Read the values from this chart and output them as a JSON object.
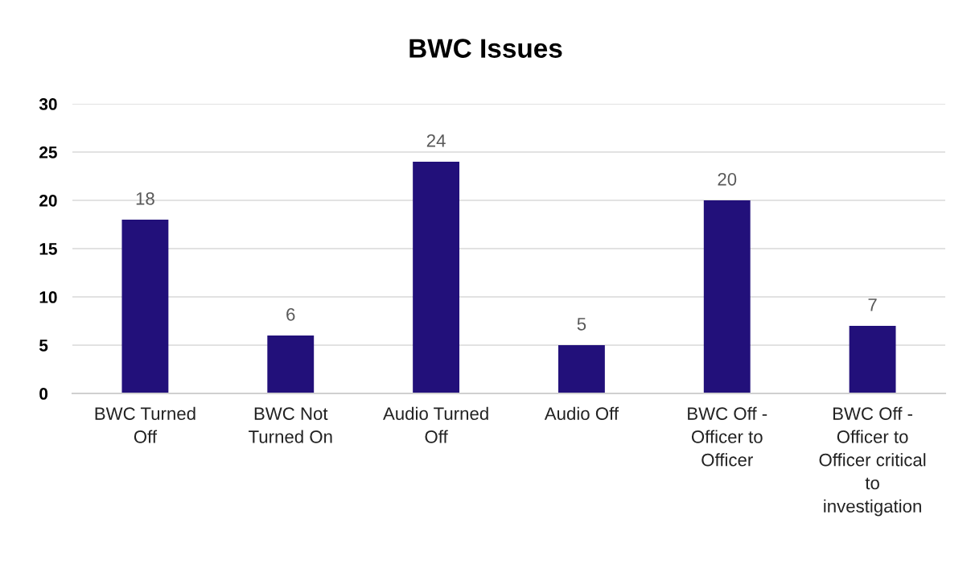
{
  "chart_data": {
    "type": "bar",
    "title": "BWC Issues",
    "categories": [
      "BWC Turned\nOff",
      "BWC Not\nTurned On",
      "Audio Turned\nOff",
      "Audio Off",
      "BWC Off -\nOfficer to\nOfficer",
      "BWC Off -\nOfficer to\nOfficer critical\nto\ninvestigation"
    ],
    "values": [
      18,
      6,
      24,
      5,
      20,
      7
    ],
    "color": "#22107a",
    "ylim": [
      0,
      30
    ],
    "yticks": [
      0,
      5,
      10,
      15,
      20,
      25,
      30
    ],
    "grid": "y",
    "data_labels": true,
    "legend": false
  }
}
